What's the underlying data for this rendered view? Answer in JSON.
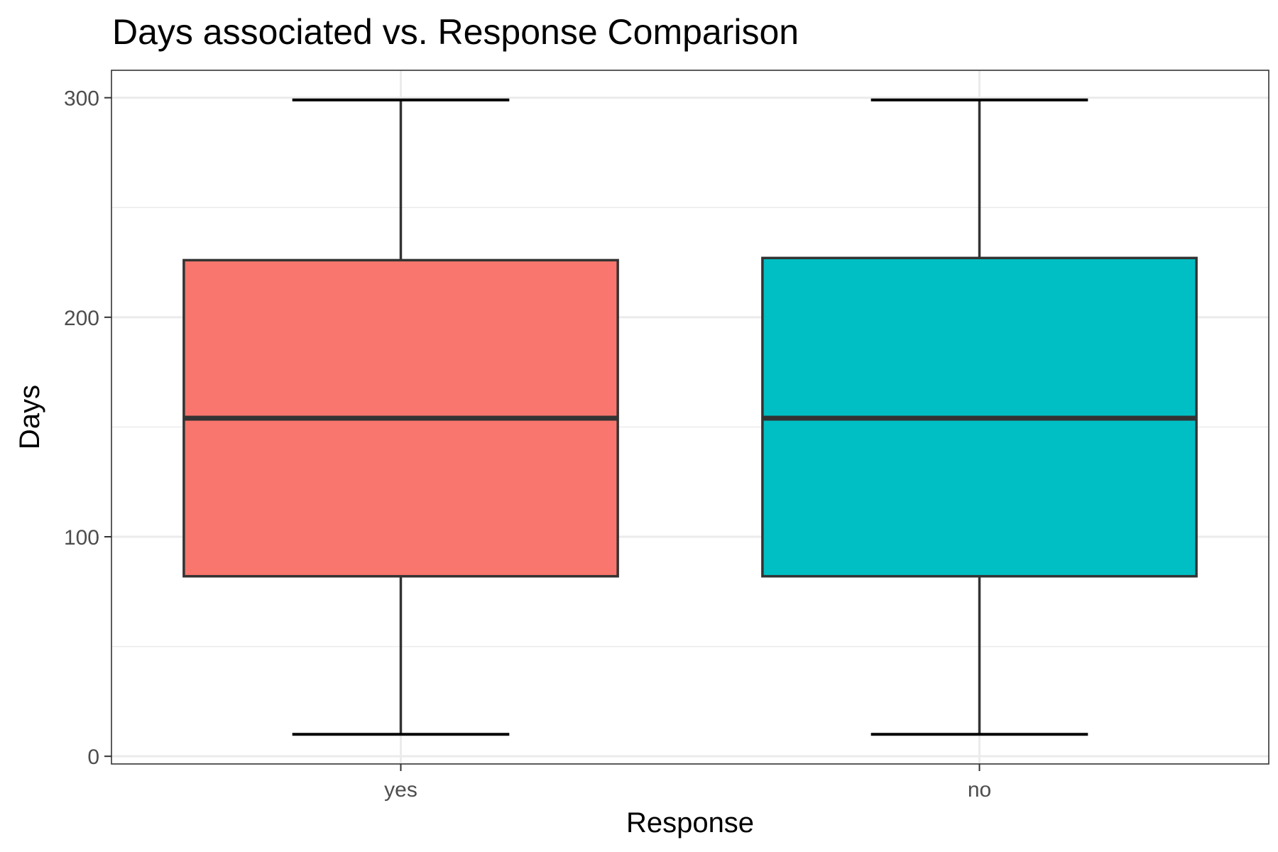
{
  "chart_data": {
    "type": "box",
    "title": "Days associated vs. Response Comparison",
    "xlabel": "Response",
    "ylabel": "Days",
    "categories": [
      "yes",
      "no"
    ],
    "boxes": [
      {
        "category": "yes",
        "min": 10,
        "q1": 82,
        "median": 154,
        "q3": 226,
        "max": 299,
        "color": "#F8766D"
      },
      {
        "category": "no",
        "min": 10,
        "q1": 82,
        "median": 154,
        "q3": 227,
        "max": 299,
        "color": "#00BFC4"
      }
    ],
    "ylim": [
      -3.5,
      312.5
    ],
    "yticks": [
      0,
      100,
      200,
      300
    ],
    "yticks_minor": [
      50,
      150,
      250
    ],
    "grid": true,
    "legend": "none"
  }
}
